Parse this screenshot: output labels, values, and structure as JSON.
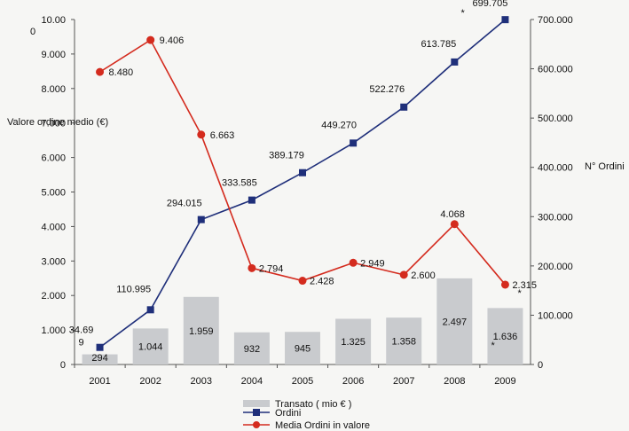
{
  "chart_data": {
    "type": "bar",
    "categories": [
      "2001",
      "2002",
      "2003",
      "2004",
      "2005",
      "2006",
      "2007",
      "2008",
      "2009"
    ],
    "series": [
      {
        "name": "Transato ( mio € )",
        "kind": "bar",
        "axis": "left",
        "values": [
          294,
          1044,
          1959,
          932,
          945,
          1325,
          1358,
          2497,
          1636
        ],
        "labels": [
          "294",
          "1.044",
          "1.959",
          "932",
          "945",
          "1.325",
          "1.358",
          "2.497",
          "1.636"
        ],
        "color": "#c9cbce"
      },
      {
        "name": "Ordini",
        "kind": "line",
        "axis": "right",
        "values": [
          34699,
          110995,
          294015,
          333585,
          389179,
          449270,
          522276,
          613785,
          699705
        ],
        "labels": [
          "34.69\n9",
          "110.995",
          "294.015",
          "333.585",
          "389.179",
          "449.270",
          "522.276",
          "613.785",
          "699.705"
        ],
        "color": "#1f2f7a",
        "marker": "square"
      },
      {
        "name": "Media Ordini in valore",
        "kind": "line",
        "axis": "left",
        "values": [
          8480,
          9406,
          6663,
          2794,
          2428,
          2949,
          2600,
          4068,
          2315
        ],
        "labels": [
          "8.480",
          "9.406",
          "6.663",
          "2.794",
          "2.428",
          "2.949",
          "2.600",
          "4.068",
          "2.315"
        ],
        "color": "#d42b1e",
        "marker": "circle"
      }
    ],
    "ylabel": "Valore ordine medio (€)",
    "y2label": "N° Ordini",
    "ylim": [
      0,
      10000
    ],
    "y2lim": [
      0,
      700000
    ],
    "yticks": [
      "0",
      "1.000",
      "2.000",
      "3.000",
      "4.000",
      "5.000",
      "6.000",
      "7.000",
      "8.000",
      "9.000",
      "10.00\n0"
    ],
    "y2ticks": [
      "0",
      "100.000",
      "200.000",
      "300.000",
      "400.000",
      "500.000",
      "600.000",
      "700.000"
    ],
    "grid": false,
    "legend_position": "bottom-center",
    "annotations": [
      "*",
      "*",
      "*"
    ]
  }
}
